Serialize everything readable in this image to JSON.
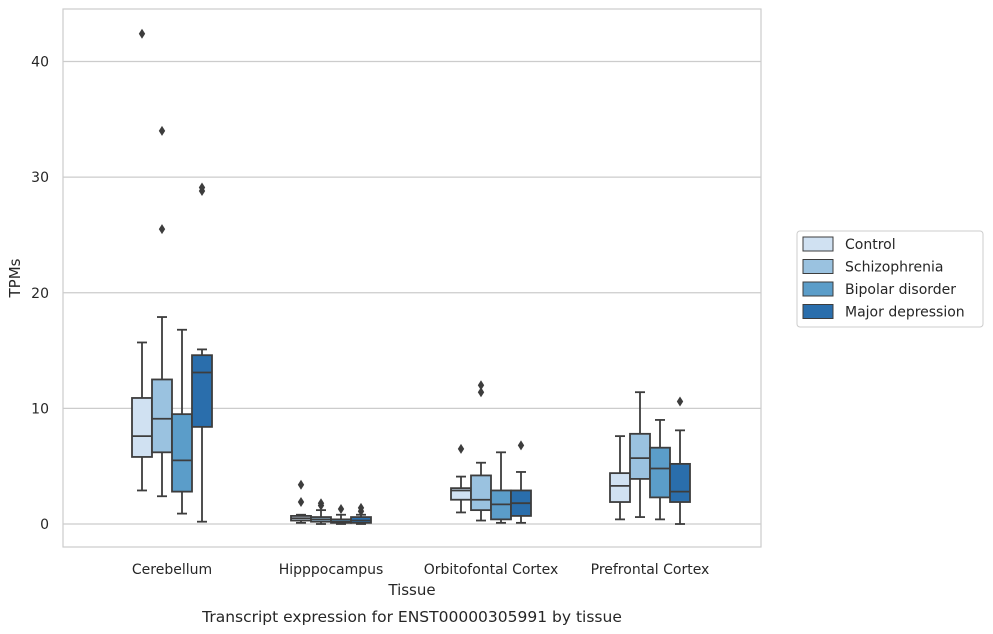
{
  "chart_data": {
    "type": "box",
    "caption": "Transcript expression for ENST00000305991 by tissue",
    "xlabel": "Tissue",
    "ylabel": "TPMs",
    "ylim": [
      -2,
      44
    ],
    "yticks": [
      0,
      10,
      20,
      30,
      40
    ],
    "grid": "horizontal",
    "legend_placement": "right",
    "categories": [
      "Cerebellum",
      "Hipppocampus",
      "Orbitofontal Cortex",
      "Prefrontal Cortex"
    ],
    "series": [
      {
        "name": "Control",
        "color": "#d0e1f2",
        "boxes": [
          {
            "whislo": 2.9,
            "q1": 5.8,
            "med": 7.6,
            "q3": 10.9,
            "whishi": 15.7,
            "fliers": [
              42.4
            ]
          },
          {
            "whislo": 0.1,
            "q1": 0.3,
            "med": 0.5,
            "q3": 0.7,
            "whishi": 0.8,
            "fliers": [
              1.9,
              3.4
            ]
          },
          {
            "whislo": 1.0,
            "q1": 2.1,
            "med": 2.9,
            "q3": 3.1,
            "whishi": 4.1,
            "fliers": [
              6.5
            ]
          },
          {
            "whislo": 0.4,
            "q1": 1.9,
            "med": 3.3,
            "q3": 4.4,
            "whishi": 7.6,
            "fliers": []
          }
        ]
      },
      {
        "name": "Schizophrenia",
        "color": "#9ac2e0",
        "boxes": [
          {
            "whislo": 2.4,
            "q1": 6.2,
            "med": 9.1,
            "q3": 12.5,
            "whishi": 17.9,
            "fliers": [
              25.5,
              34.0
            ]
          },
          {
            "whislo": 0.0,
            "q1": 0.2,
            "med": 0.4,
            "q3": 0.6,
            "whishi": 1.2,
            "fliers": [
              1.6,
              1.8
            ]
          },
          {
            "whislo": 0.3,
            "q1": 1.2,
            "med": 2.1,
            "q3": 4.2,
            "whishi": 5.3,
            "fliers": [
              11.4,
              12.0
            ]
          },
          {
            "whislo": 0.6,
            "q1": 3.9,
            "med": 5.7,
            "q3": 7.8,
            "whishi": 11.4,
            "fliers": []
          }
        ]
      },
      {
        "name": "Bipolar disorder",
        "color": "#5b9dc9",
        "boxes": [
          {
            "whislo": 0.9,
            "q1": 2.8,
            "med": 5.5,
            "q3": 9.5,
            "whishi": 16.8,
            "fliers": []
          },
          {
            "whislo": 0.0,
            "q1": 0.1,
            "med": 0.2,
            "q3": 0.4,
            "whishi": 0.8,
            "fliers": [
              1.3
            ]
          },
          {
            "whislo": 0.1,
            "q1": 0.4,
            "med": 1.7,
            "q3": 2.9,
            "whishi": 6.2,
            "fliers": []
          },
          {
            "whislo": 0.4,
            "q1": 2.3,
            "med": 4.8,
            "q3": 6.6,
            "whishi": 9.0,
            "fliers": []
          }
        ]
      },
      {
        "name": "Major depression",
        "color": "#2a6eac",
        "boxes": [
          {
            "whislo": 0.2,
            "q1": 8.4,
            "med": 13.1,
            "q3": 14.6,
            "whishi": 15.1,
            "fliers": [
              28.8,
              29.1
            ]
          },
          {
            "whislo": 0.0,
            "q1": 0.1,
            "med": 0.3,
            "q3": 0.6,
            "whishi": 0.8,
            "fliers": [
              1.1,
              1.4
            ]
          },
          {
            "whislo": 0.1,
            "q1": 0.7,
            "med": 1.8,
            "q3": 2.9,
            "whishi": 4.5,
            "fliers": [
              6.8
            ]
          },
          {
            "whislo": 0.0,
            "q1": 1.9,
            "med": 2.8,
            "q3": 5.2,
            "whishi": 8.1,
            "fliers": [
              10.6
            ]
          }
        ]
      }
    ]
  }
}
